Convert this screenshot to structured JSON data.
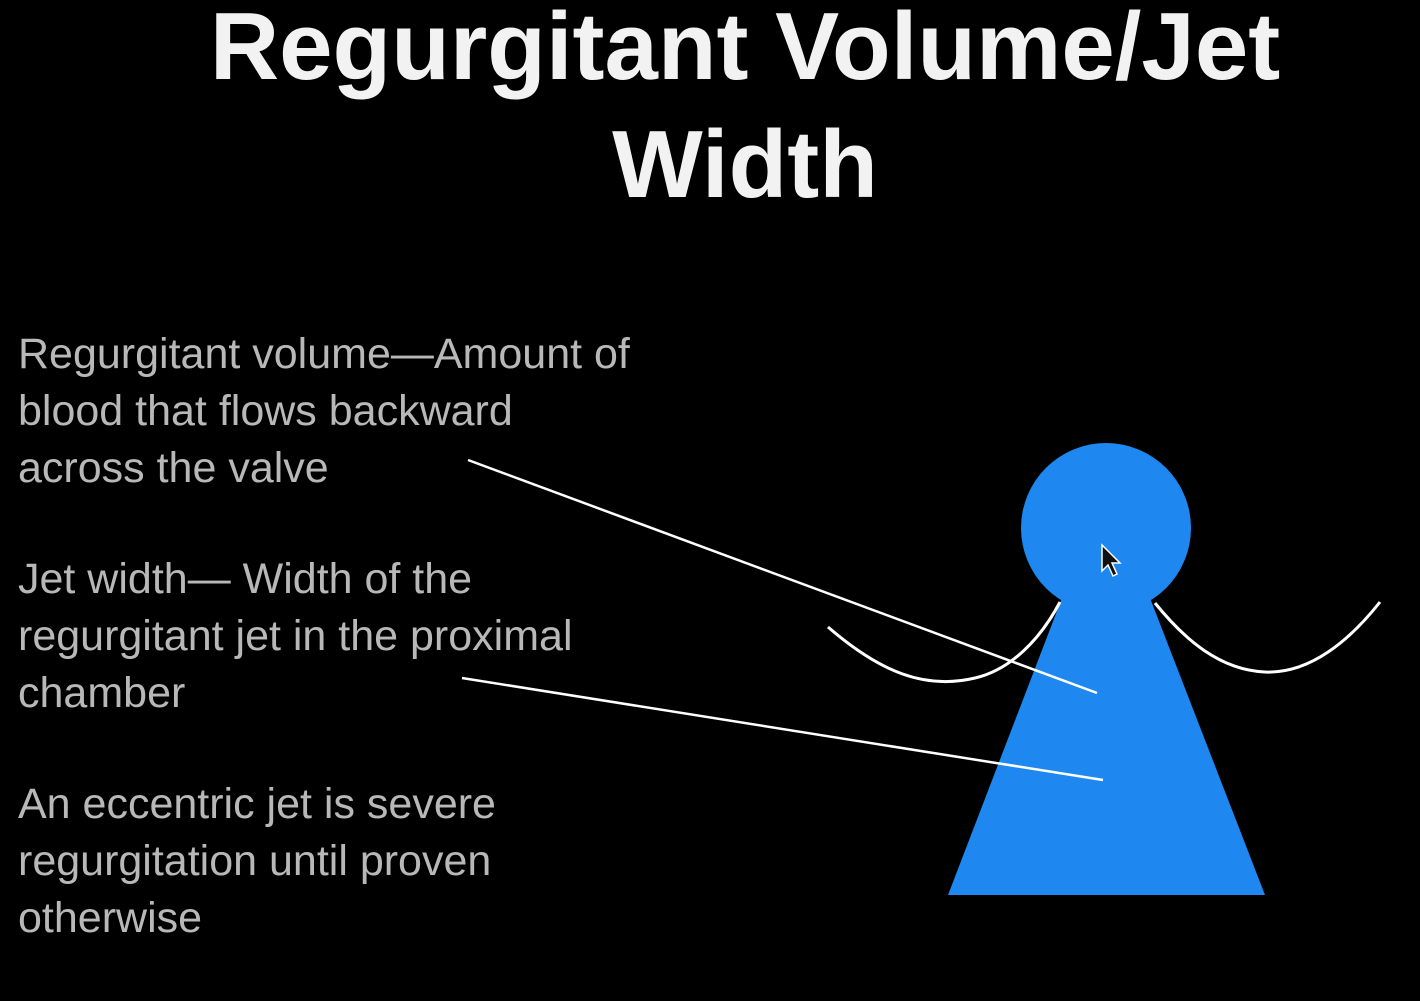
{
  "slide": {
    "title_line1": "Regurgitant Volume/Jet",
    "title_line2": "Width",
    "bullets": [
      {
        "text": "Regurgitant volume—Amount of\nblood that flows backward\nacross the valve"
      },
      {
        "text": "Jet width— Width of the\nregurgitant jet in the proximal\nchamber"
      },
      {
        "text": "An eccentric jet is severe\nregurgitation until proven\notherwise"
      }
    ]
  },
  "colors": {
    "background": "#000000",
    "title": "#f2f2f2",
    "body_text": "#b8b8b8",
    "jet_fill": "#1e88f0",
    "lines": "#ffffff"
  },
  "diagram": {
    "shapes": [
      "jet-circle",
      "jet-cone",
      "valve-leaflet-left",
      "valve-leaflet-right"
    ],
    "pointer_icon": "mouse-cursor-icon"
  }
}
